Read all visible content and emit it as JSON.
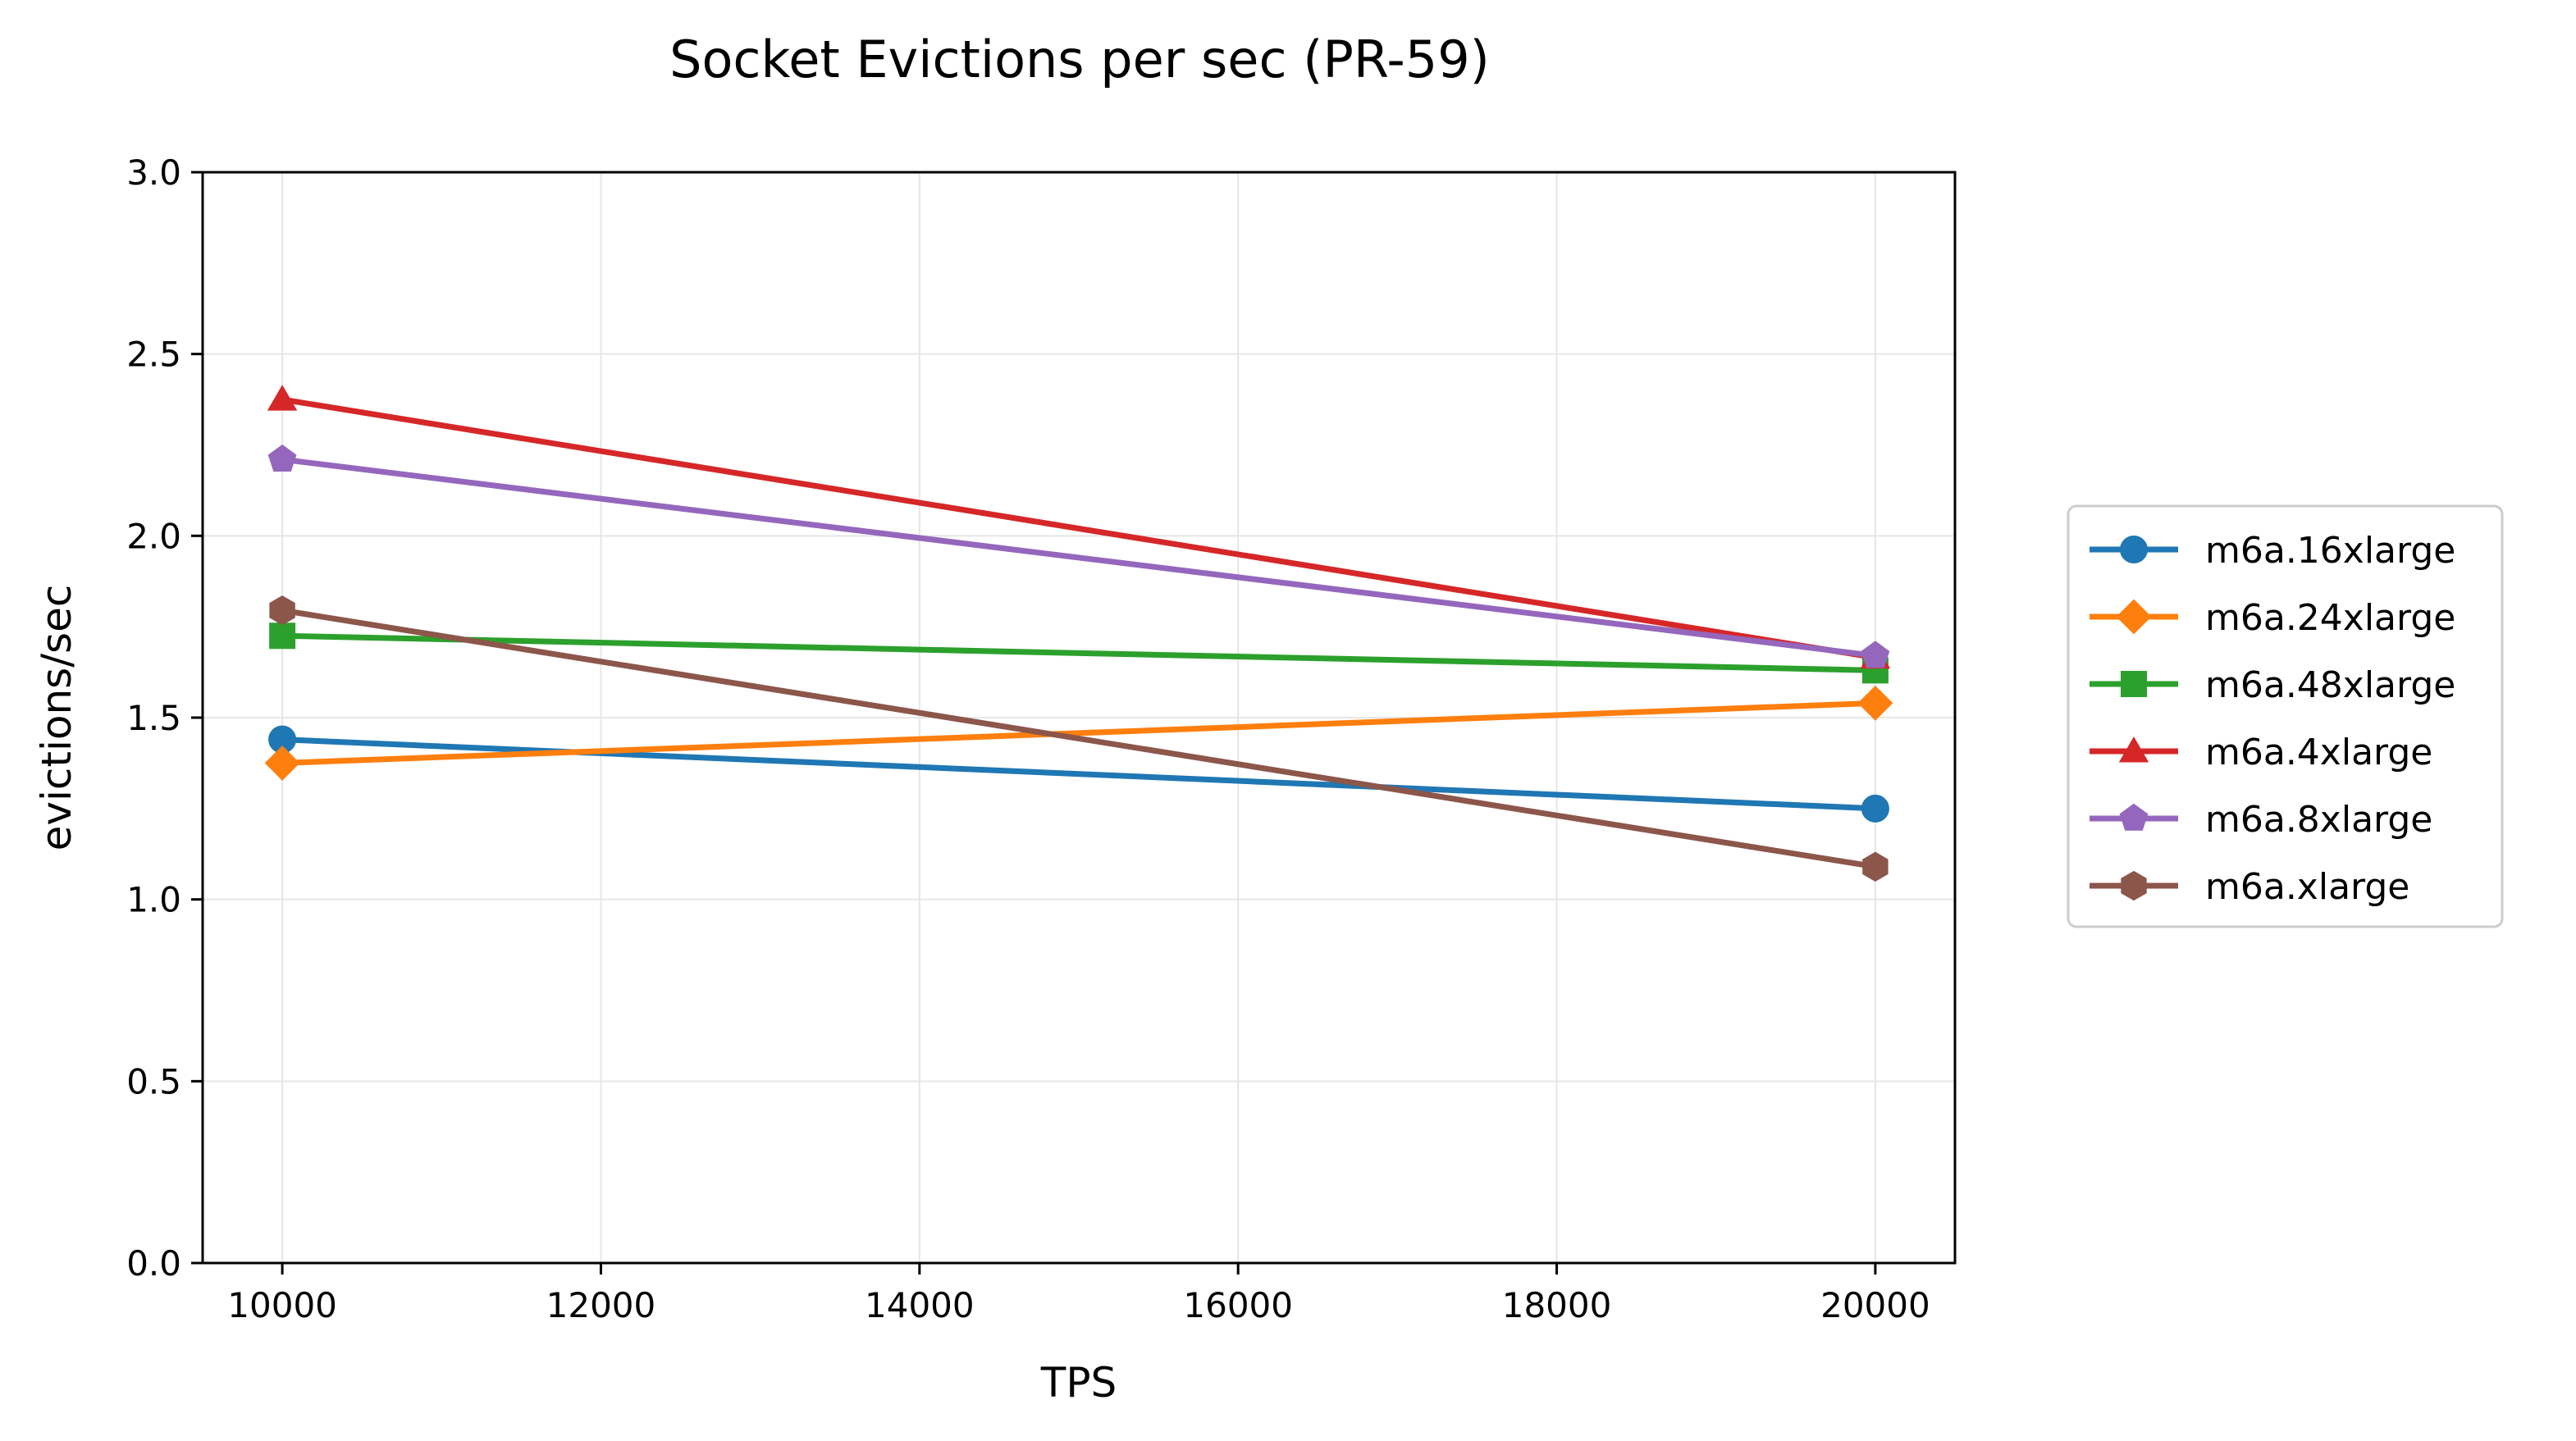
{
  "chart_data": {
    "type": "line",
    "title": "Socket Evictions per sec (PR-59)",
    "xlabel": "TPS",
    "ylabel": "evictions/sec",
    "xlim": [
      9500,
      20500
    ],
    "ylim": [
      0.0,
      3.0
    ],
    "xticks": [
      "10000",
      "12000",
      "14000",
      "16000",
      "18000",
      "20000"
    ],
    "xtick_values": [
      10000,
      12000,
      14000,
      16000,
      18000,
      20000
    ],
    "yticks": [
      "0.0",
      "0.5",
      "1.0",
      "1.5",
      "2.0",
      "2.5",
      "3.0"
    ],
    "ytick_values": [
      0.0,
      0.5,
      1.0,
      1.5,
      2.0,
      2.5,
      3.0
    ],
    "grid": true,
    "legend_position": "right, outside plot",
    "x": [
      10000,
      20000
    ],
    "series": [
      {
        "name": "m6a.16xlarge",
        "values": [
          1.44,
          1.25
        ],
        "color": "#1f77b4",
        "marker": "circle"
      },
      {
        "name": "m6a.24xlarge",
        "values": [
          1.375,
          1.54
        ],
        "color": "#ff7f0e",
        "marker": "diamond"
      },
      {
        "name": "m6a.48xlarge",
        "values": [
          1.725,
          1.63
        ],
        "color": "#2ca02c",
        "marker": "square"
      },
      {
        "name": "m6a.4xlarge",
        "values": [
          2.375,
          1.665
        ],
        "color": "#d62728",
        "marker": "triangle"
      },
      {
        "name": "m6a.8xlarge",
        "values": [
          2.21,
          1.67
        ],
        "color": "#9467bd",
        "marker": "pentagon"
      },
      {
        "name": "m6a.xlarge",
        "values": [
          1.795,
          1.09
        ],
        "color": "#8c564b",
        "marker": "hexagon"
      }
    ]
  }
}
